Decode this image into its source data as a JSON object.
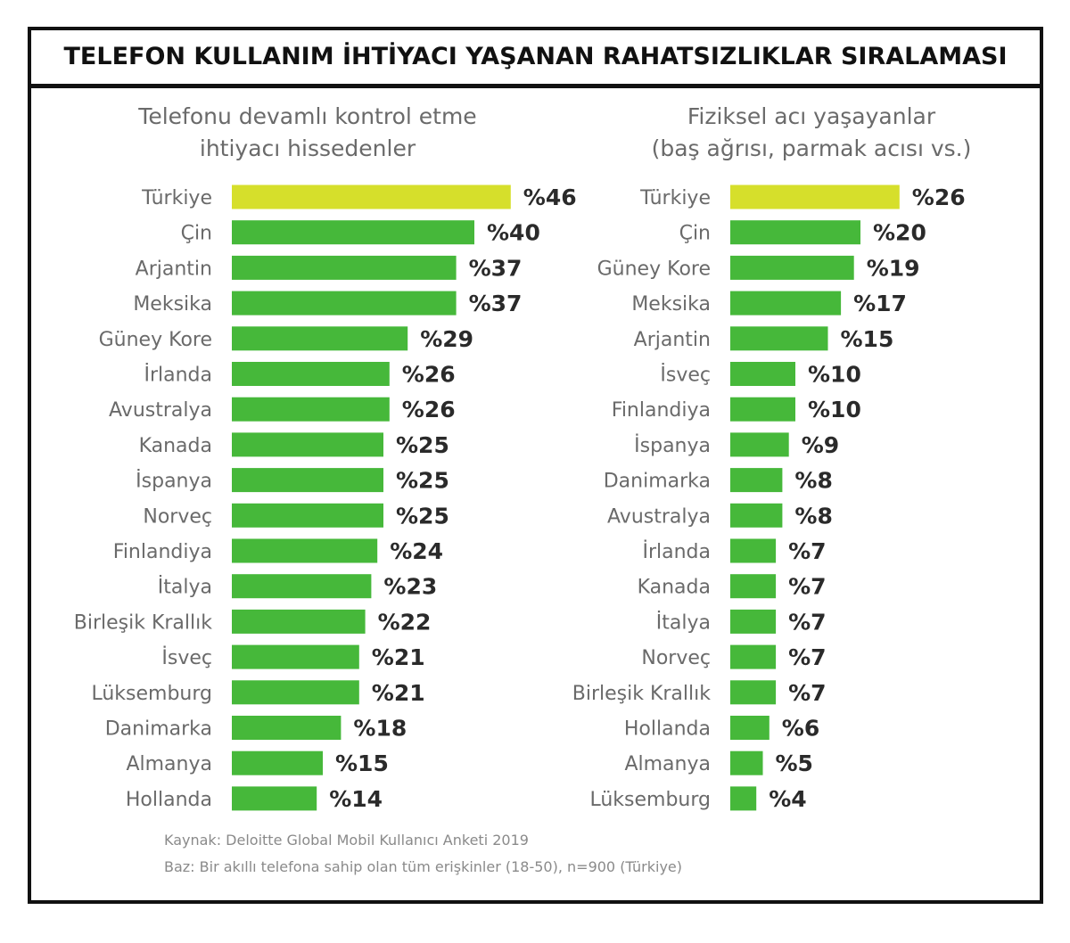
{
  "title": "TELEFON KULLANIM İHTİYACI YAŞANAN RAHATSIZLIKLAR SIRALAMASI",
  "colors": {
    "highlight": "#d6df2b",
    "bar": "#46b83a",
    "label": "#6a6a6a",
    "value": "#2a2a2a"
  },
  "chart_data": [
    {
      "type": "bar",
      "orientation": "horizontal",
      "title_line1": "Telefonu devamlı kontrol etme",
      "title_line2": "ihtiyacı hissedenler",
      "value_prefix": "%",
      "highlight_index": 0,
      "categories": [
        "Türkiye",
        "Çin",
        "Arjantin",
        "Meksika",
        "Güney Kore",
        "İrlanda",
        "Avustralya",
        "Kanada",
        "İspanya",
        "Norveç",
        "Finlandiya",
        "İtalya",
        "Birleşik Krallık",
        "İsveç",
        "Lüksemburg",
        "Danimarka",
        "Almanya",
        "Hollanda"
      ],
      "values": [
        46,
        40,
        37,
        37,
        29,
        26,
        26,
        25,
        25,
        25,
        24,
        23,
        22,
        21,
        21,
        18,
        15,
        14
      ]
    },
    {
      "type": "bar",
      "orientation": "horizontal",
      "title_line1": "Fiziksel acı yaşayanlar",
      "title_line2": "(baş ağrısı, parmak acısı vs.)",
      "value_prefix": "%",
      "highlight_index": 0,
      "categories": [
        "Türkiye",
        "Çin",
        "Güney Kore",
        "Meksika",
        "Arjantin",
        "İsveç",
        "Finlandiya",
        "İspanya",
        "Danimarka",
        "Avustralya",
        "İrlanda",
        "Kanada",
        "İtalya",
        "Norveç",
        "Birleşik Krallık",
        "Hollanda",
        "Almanya",
        "Lüksemburg"
      ],
      "values": [
        26,
        20,
        19,
        17,
        15,
        10,
        10,
        9,
        8,
        8,
        7,
        7,
        7,
        7,
        7,
        6,
        5,
        4
      ]
    }
  ],
  "footnotes": {
    "source": "Kaynak: Deloitte Global Mobil Kullanıcı Anketi 2019",
    "base": "Baz: Bir akıllı telefona sahip olan tüm erişkinler (18-50), n=900 (Türkiye)"
  }
}
